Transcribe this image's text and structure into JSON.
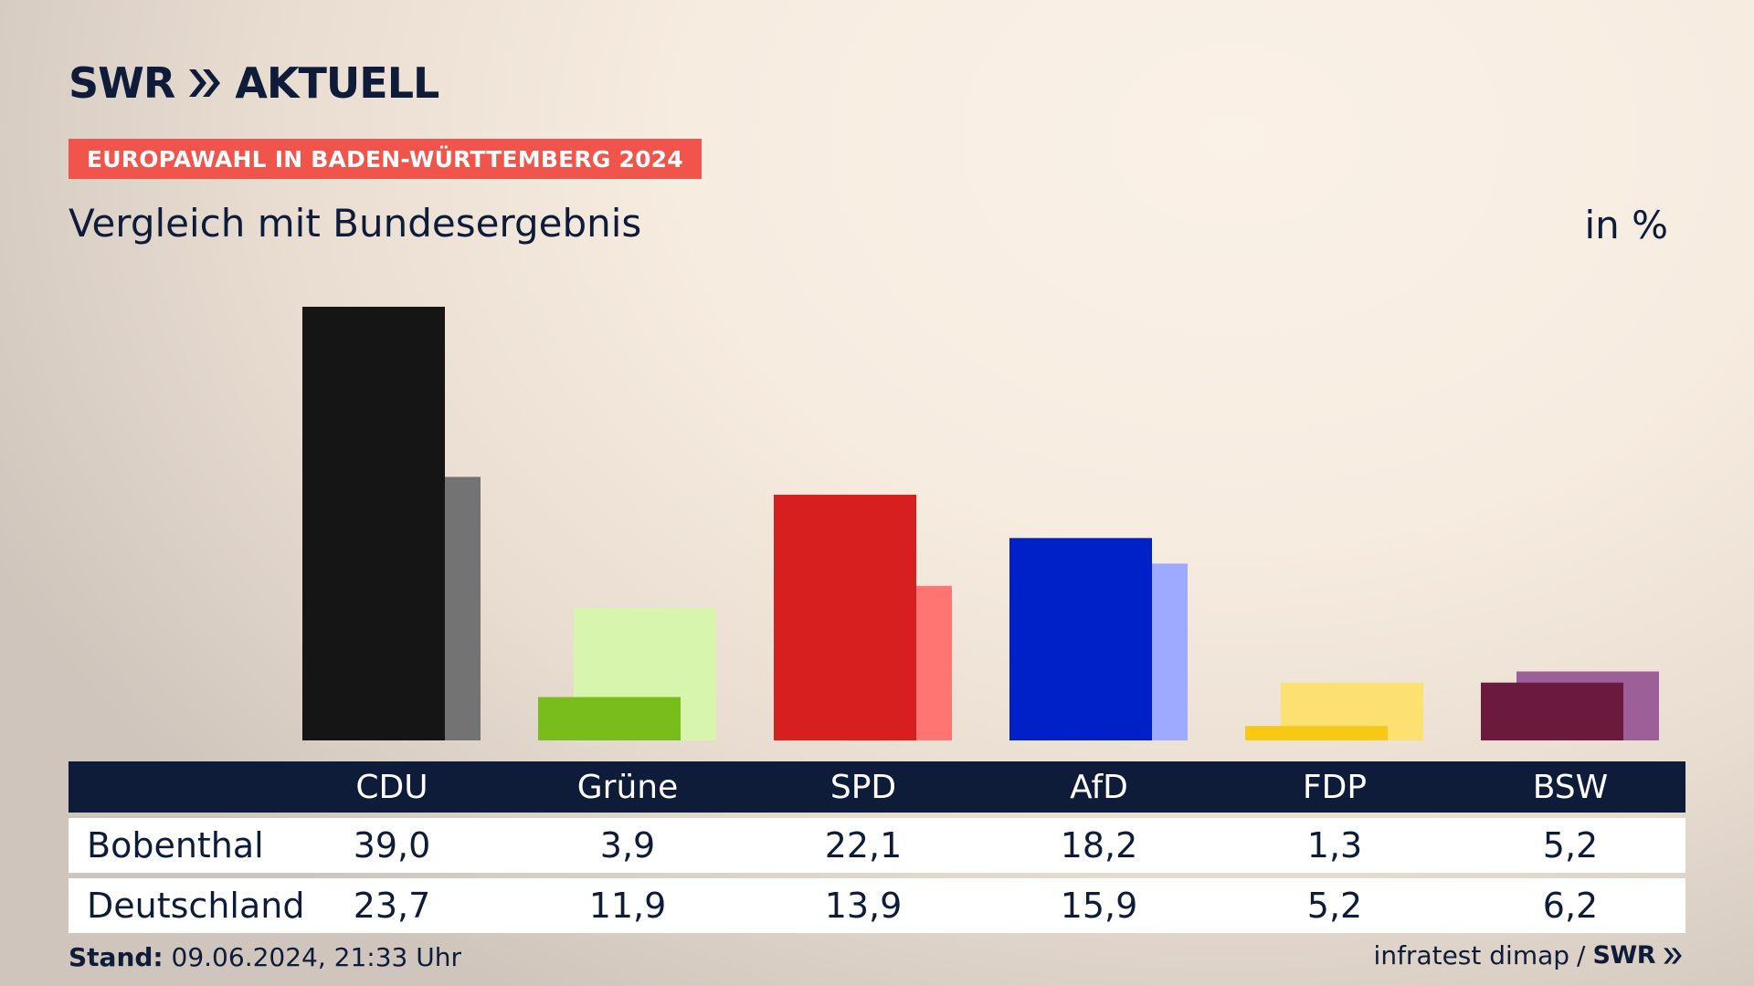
{
  "header": {
    "brand": "SWR",
    "product": "AKTUELL",
    "badge": "EUROPAWAHL IN BADEN-WÜRTTEMBERG 2024",
    "title": "Vergleich mit Bundesergebnis",
    "unit": "in %"
  },
  "chart_data": {
    "type": "bar",
    "categories": [
      "CDU",
      "Grüne",
      "SPD",
      "AfD",
      "FDP",
      "BSW"
    ],
    "series": [
      {
        "name": "Bobenthal",
        "values": [
          39.0,
          3.9,
          22.1,
          18.2,
          1.3,
          5.2
        ]
      },
      {
        "name": "Deutschland",
        "values": [
          23.7,
          11.9,
          13.9,
          15.9,
          5.2,
          6.2
        ]
      }
    ],
    "colors": {
      "primary": [
        "#151515",
        "#79bd1c",
        "#d81f1f",
        "#0020c8",
        "#f7c814",
        "#6b1a3d"
      ],
      "secondary": [
        "#737373",
        "#d8f5ae",
        "#ff7571",
        "#9eaaff",
        "#fce172",
        "#9c5f98"
      ]
    },
    "ylim": [
      0,
      39
    ]
  },
  "table": {
    "rows": [
      {
        "label": "Bobenthal",
        "values": [
          "39,0",
          "3,9",
          "22,1",
          "18,2",
          "1,3",
          "5,2"
        ]
      },
      {
        "label": "Deutschland",
        "values": [
          "23,7",
          "11,9",
          "13,9",
          "15,9",
          "5,2",
          "6,2"
        ]
      }
    ]
  },
  "footer": {
    "stand_label": "Stand:",
    "stand_value": "09.06.2024, 21:33 Uhr",
    "source": "infratest dimap",
    "separator": "/",
    "brand": "SWR"
  }
}
